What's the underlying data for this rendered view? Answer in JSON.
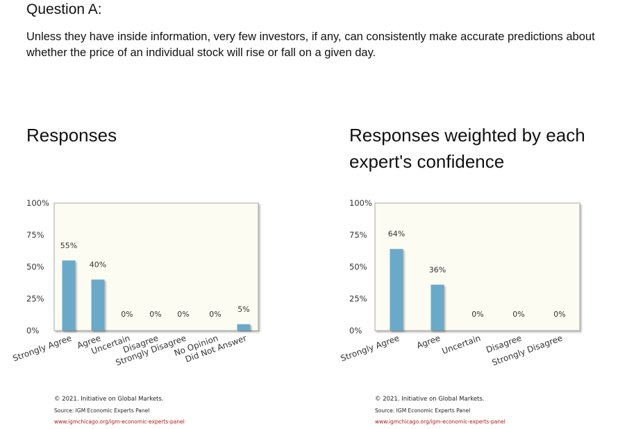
{
  "question": {
    "title": "Question A:",
    "text": "Unless they have inside information, very few investors, if any, can consistently make accurate predictions about whether the price of an individual stock will rise or fall on a given day."
  },
  "panels": [
    {
      "title": "Responses",
      "footer": {
        "copyright": "© 2021. Initiative on Global Markets.",
        "source": "Source: IGM Economic Experts Panel",
        "url": "www.igmchicago.org/igm-economic-experts-panel"
      }
    },
    {
      "title": "Responses weighted by each expert's confidence",
      "footer": {
        "copyright": "© 2021. Initiative on Global Markets.",
        "source": "Source: IGM Economic Experts Panel",
        "url": "www.igmchicago.org/igm-economic-experts-panel"
      }
    }
  ],
  "colors": {
    "bar": "#6aaac8",
    "plot_bg": "#fcfcf2",
    "frame": "#a8a8a8",
    "url": "#b01919"
  },
  "chart_data": [
    {
      "type": "bar",
      "categories": [
        "Strongly Agree",
        "Agree",
        "Uncertain",
        "Disagree",
        "Strongly Disagree",
        "No Opinion",
        "Did Not Answer"
      ],
      "values": [
        55,
        40,
        0,
        0,
        0,
        0,
        5
      ],
      "data_labels": [
        "55%",
        "40%",
        "0%",
        "0%",
        "0%",
        "0%",
        "5%"
      ],
      "yticks": [
        "0%",
        "25%",
        "50%",
        "75%",
        "100%"
      ],
      "ylim": [
        0,
        100
      ],
      "grid": false
    },
    {
      "type": "bar",
      "categories": [
        "Strongly Agree",
        "Agree",
        "Uncertain",
        "Disagree",
        "Strongly Disagree"
      ],
      "values": [
        64,
        36,
        0,
        0,
        0
      ],
      "data_labels": [
        "64%",
        "36%",
        "0%",
        "0%",
        "0%"
      ],
      "yticks": [
        "0%",
        "25%",
        "50%",
        "75%",
        "100%"
      ],
      "ylim": [
        0,
        100
      ],
      "grid": false
    }
  ]
}
